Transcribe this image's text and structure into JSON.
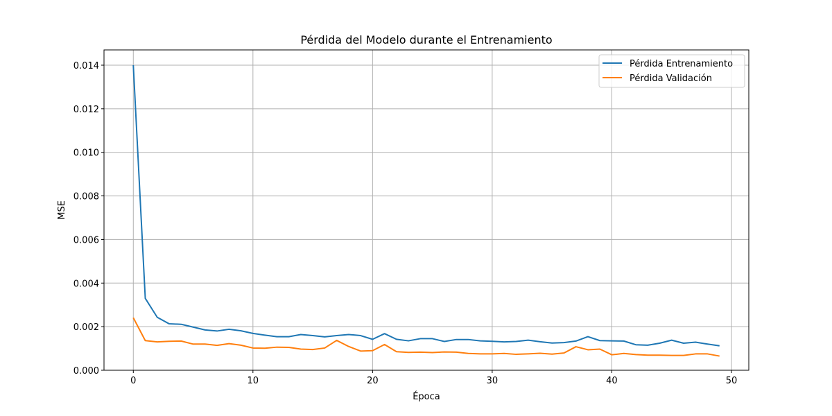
{
  "chart_data": {
    "type": "line",
    "title": "Pérdida del Modelo durante el Entrenamiento",
    "xlabel": "Época",
    "ylabel": "MSE",
    "xlim": [
      -2.45,
      51.45
    ],
    "ylim": [
      0,
      0.0147
    ],
    "xticks": [
      0,
      10,
      20,
      30,
      40,
      50
    ],
    "xtick_labels": [
      "0",
      "10",
      "20",
      "30",
      "40",
      "50"
    ],
    "yticks": [
      0,
      0.002,
      0.004,
      0.006,
      0.008,
      0.01,
      0.012,
      0.014
    ],
    "ytick_labels": [
      "0.000",
      "0.002",
      "0.004",
      "0.006",
      "0.008",
      "0.010",
      "0.012",
      "0.014"
    ],
    "grid": true,
    "legend_position": "top-right",
    "x": [
      0,
      1,
      2,
      3,
      4,
      5,
      6,
      7,
      8,
      9,
      10,
      11,
      12,
      13,
      14,
      15,
      16,
      17,
      18,
      19,
      20,
      21,
      22,
      23,
      24,
      25,
      26,
      27,
      28,
      29,
      30,
      31,
      32,
      33,
      34,
      35,
      36,
      37,
      38,
      39,
      40,
      41,
      42,
      43,
      44,
      45,
      46,
      47,
      48,
      49
    ],
    "series": [
      {
        "name": "Pérdida Entrenamiento",
        "color": "#1f77b4",
        "values": [
          0.014,
          0.0033,
          0.00243,
          0.00213,
          0.00211,
          0.00198,
          0.00185,
          0.0018,
          0.00188,
          0.00181,
          0.00169,
          0.00161,
          0.00154,
          0.00154,
          0.00164,
          0.00159,
          0.00153,
          0.00159,
          0.00164,
          0.00159,
          0.00142,
          0.00168,
          0.00142,
          0.00135,
          0.00145,
          0.00145,
          0.00132,
          0.00141,
          0.00141,
          0.00135,
          0.00133,
          0.0013,
          0.00132,
          0.00138,
          0.00131,
          0.00125,
          0.00127,
          0.00134,
          0.00154,
          0.00136,
          0.00135,
          0.00134,
          0.00117,
          0.00115,
          0.00124,
          0.00138,
          0.00124,
          0.00129,
          0.0012,
          0.00112
        ]
      },
      {
        "name": "Pérdida Validación",
        "color": "#ff7f0e",
        "values": [
          0.00241,
          0.00136,
          0.0013,
          0.00133,
          0.00134,
          0.0012,
          0.0012,
          0.00114,
          0.00122,
          0.00115,
          0.00102,
          0.00101,
          0.00106,
          0.00105,
          0.00097,
          0.00095,
          0.00102,
          0.00137,
          0.00109,
          0.00088,
          0.0009,
          0.00118,
          0.00085,
          0.00082,
          0.00083,
          0.00081,
          0.00084,
          0.00083,
          0.00077,
          0.00075,
          0.00075,
          0.00077,
          0.00073,
          0.00075,
          0.00078,
          0.00074,
          0.00079,
          0.00108,
          0.00094,
          0.00097,
          0.00071,
          0.00077,
          0.00072,
          0.00069,
          0.00069,
          0.00068,
          0.00068,
          0.00075,
          0.00075,
          0.00065
        ]
      }
    ]
  }
}
